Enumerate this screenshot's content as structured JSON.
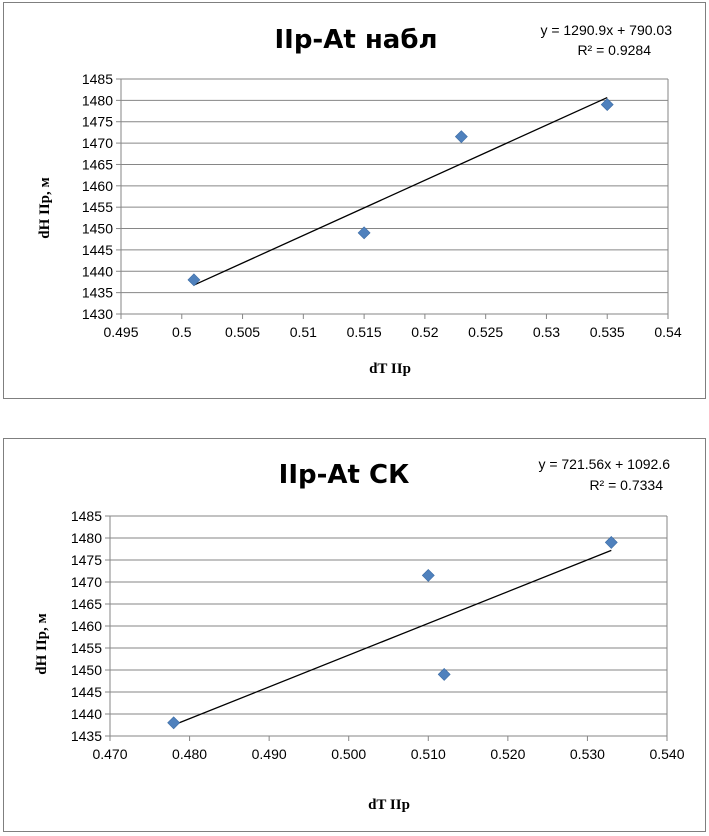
{
  "chart_data": [
    {
      "type": "scatter",
      "title": "IIр-At набл",
      "xlabel": "dT IIр",
      "ylabel": "dH IIр, м",
      "xlim": [
        0.495,
        0.54
      ],
      "ylim": [
        1430,
        1485
      ],
      "x_ticks": [
        "0.495",
        "0.5",
        "0.505",
        "0.51",
        "0.515",
        "0.52",
        "0.525",
        "0.53",
        "0.535",
        "0.54"
      ],
      "y_ticks": [
        "1430",
        "1435",
        "1440",
        "1445",
        "1450",
        "1455",
        "1460",
        "1465",
        "1470",
        "1475",
        "1480",
        "1485"
      ],
      "points": [
        {
          "x": 0.501,
          "y": 1438
        },
        {
          "x": 0.515,
          "y": 1449
        },
        {
          "x": 0.523,
          "y": 1471.5
        },
        {
          "x": 0.535,
          "y": 1479
        }
      ],
      "trendline": {
        "slope": 1290.9,
        "intercept": 790.03,
        "x_range": [
          0.501,
          0.535
        ]
      },
      "equation": "y = 1290.9x + 790.03",
      "r_squared": "R² = 0.9284",
      "grid": "horizontal",
      "legend": "none"
    },
    {
      "type": "scatter",
      "title": "IIр-At СК",
      "xlabel": "dT IIр",
      "ylabel": "dH IIр, м",
      "xlim": [
        0.47,
        0.54
      ],
      "ylim": [
        1435,
        1485
      ],
      "x_ticks": [
        "0.470",
        "0.480",
        "0.490",
        "0.500",
        "0.510",
        "0.520",
        "0.530",
        "0.540"
      ],
      "y_ticks": [
        "1435",
        "1440",
        "1445",
        "1450",
        "1455",
        "1460",
        "1465",
        "1470",
        "1475",
        "1480",
        "1485"
      ],
      "points": [
        {
          "x": 0.478,
          "y": 1438
        },
        {
          "x": 0.51,
          "y": 1471.5
        },
        {
          "x": 0.512,
          "y": 1449
        },
        {
          "x": 0.533,
          "y": 1479
        }
      ],
      "trendline": {
        "slope": 721.56,
        "intercept": 1092.6,
        "x_range": [
          0.478,
          0.533
        ]
      },
      "equation": "y = 721.56x + 1092.6",
      "r_squared": "R² = 0.7334",
      "grid": "horizontal",
      "legend": "none"
    }
  ],
  "colors": {
    "marker": "#4f81bd",
    "trendline": "#000000",
    "gridline": "#868686",
    "frame": "#7f7f7f"
  }
}
